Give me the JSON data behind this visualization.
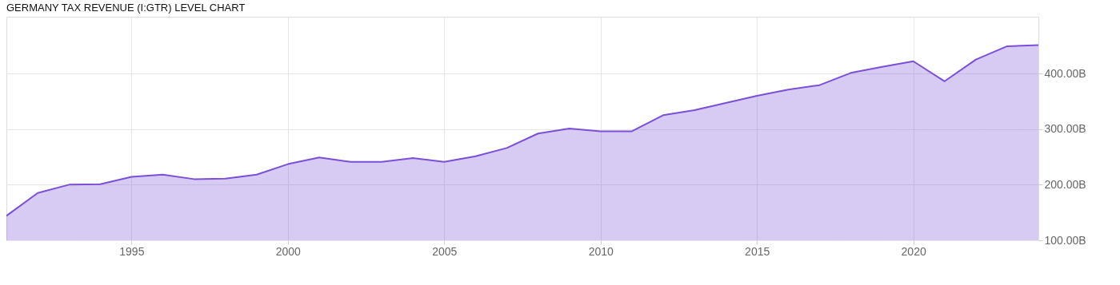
{
  "chart_data": {
    "type": "area",
    "title": "GERMANY TAX REVENUE (I:GTR) LEVEL CHART",
    "x": [
      1991,
      1992,
      1993,
      1994,
      1995,
      1996,
      1997,
      1998,
      1999,
      2000,
      2001,
      2002,
      2003,
      2004,
      2005,
      2006,
      2007,
      2008,
      2009,
      2010,
      2011,
      2012,
      2013,
      2014,
      2015,
      2016,
      2017,
      2018,
      2019,
      2020,
      2021,
      2022,
      2023,
      2024
    ],
    "series": [
      {
        "color": "#7b4fd6",
        "values": [
          144,
          185,
          200,
          201,
          214,
          218,
          210,
          211,
          218,
          237,
          249,
          241,
          241,
          248,
          241,
          251,
          266,
          292,
          301,
          296,
          296,
          325,
          334,
          347,
          360,
          371,
          379,
          401,
          412,
          422,
          386,
          425,
          449,
          451
        ]
      }
    ],
    "xlim": [
      1991,
      2024
    ],
    "xticks": [
      1995,
      2000,
      2005,
      2010,
      2015,
      2020
    ],
    "ylim": [
      100,
      502
    ],
    "yticks": [
      {
        "value": 100,
        "label": "100.00B"
      },
      {
        "value": 200,
        "label": "200.00B"
      },
      {
        "value": 300,
        "label": "300.00B"
      },
      {
        "value": 400,
        "label": "400.00B"
      }
    ],
    "grid": true
  }
}
